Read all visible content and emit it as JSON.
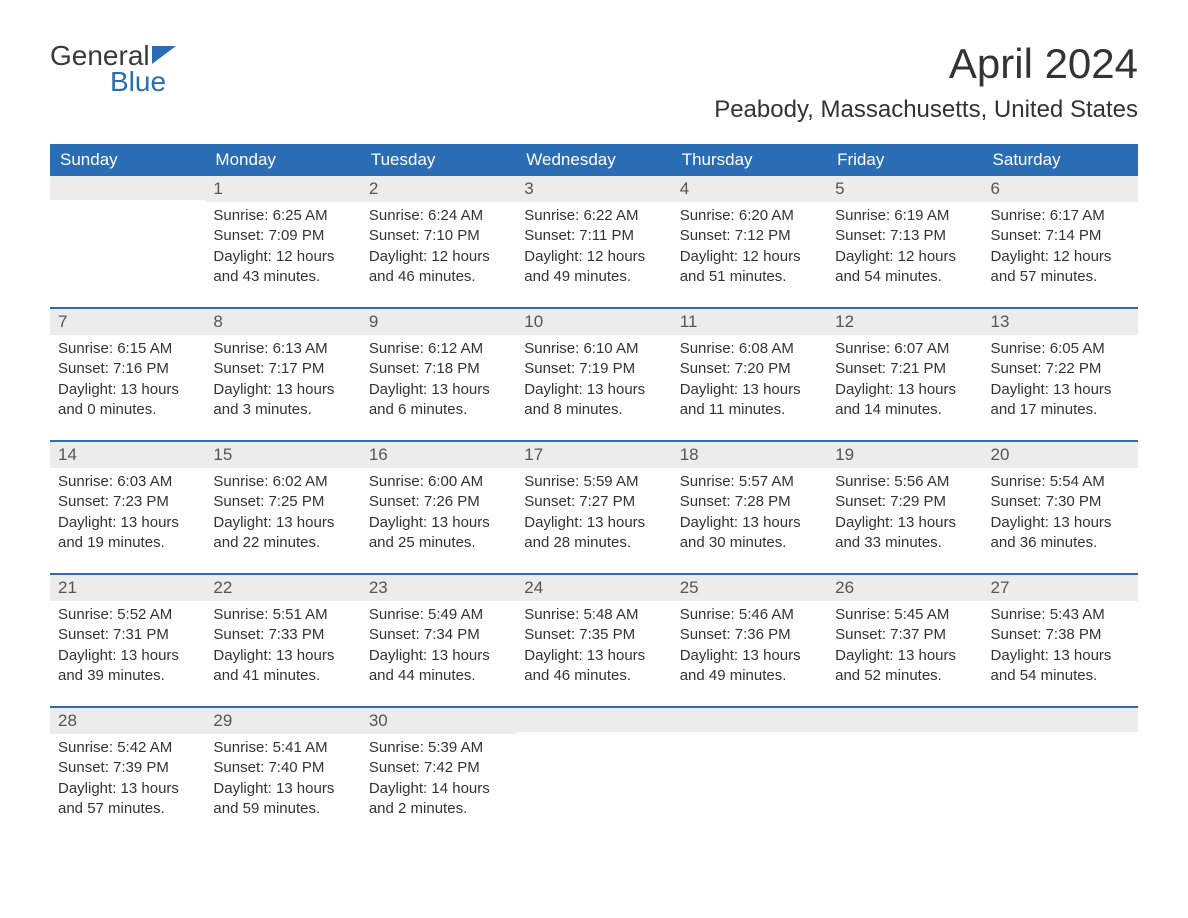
{
  "logo": {
    "word1": "General",
    "word2": "Blue"
  },
  "title": "April 2024",
  "location": "Peabody, Massachusetts, United States",
  "headers": [
    "Sunday",
    "Monday",
    "Tuesday",
    "Wednesday",
    "Thursday",
    "Friday",
    "Saturday"
  ],
  "colors": {
    "accent": "#2a6db5",
    "header_bg": "#2a6db5",
    "header_text": "#ffffff",
    "daynum_bg": "#ececec",
    "text": "#333333",
    "background": "#ffffff"
  },
  "layout": {
    "columns": 7,
    "first_weekday_offset": 1,
    "days_in_month": 30
  },
  "weeks": [
    [
      {
        "n": "",
        "sr": "",
        "ss": "",
        "dl": ""
      },
      {
        "n": "1",
        "sr": "Sunrise: 6:25 AM",
        "ss": "Sunset: 7:09 PM",
        "dl": "Daylight: 12 hours and 43 minutes."
      },
      {
        "n": "2",
        "sr": "Sunrise: 6:24 AM",
        "ss": "Sunset: 7:10 PM",
        "dl": "Daylight: 12 hours and 46 minutes."
      },
      {
        "n": "3",
        "sr": "Sunrise: 6:22 AM",
        "ss": "Sunset: 7:11 PM",
        "dl": "Daylight: 12 hours and 49 minutes."
      },
      {
        "n": "4",
        "sr": "Sunrise: 6:20 AM",
        "ss": "Sunset: 7:12 PM",
        "dl": "Daylight: 12 hours and 51 minutes."
      },
      {
        "n": "5",
        "sr": "Sunrise: 6:19 AM",
        "ss": "Sunset: 7:13 PM",
        "dl": "Daylight: 12 hours and 54 minutes."
      },
      {
        "n": "6",
        "sr": "Sunrise: 6:17 AM",
        "ss": "Sunset: 7:14 PM",
        "dl": "Daylight: 12 hours and 57 minutes."
      }
    ],
    [
      {
        "n": "7",
        "sr": "Sunrise: 6:15 AM",
        "ss": "Sunset: 7:16 PM",
        "dl": "Daylight: 13 hours and 0 minutes."
      },
      {
        "n": "8",
        "sr": "Sunrise: 6:13 AM",
        "ss": "Sunset: 7:17 PM",
        "dl": "Daylight: 13 hours and 3 minutes."
      },
      {
        "n": "9",
        "sr": "Sunrise: 6:12 AM",
        "ss": "Sunset: 7:18 PM",
        "dl": "Daylight: 13 hours and 6 minutes."
      },
      {
        "n": "10",
        "sr": "Sunrise: 6:10 AM",
        "ss": "Sunset: 7:19 PM",
        "dl": "Daylight: 13 hours and 8 minutes."
      },
      {
        "n": "11",
        "sr": "Sunrise: 6:08 AM",
        "ss": "Sunset: 7:20 PM",
        "dl": "Daylight: 13 hours and 11 minutes."
      },
      {
        "n": "12",
        "sr": "Sunrise: 6:07 AM",
        "ss": "Sunset: 7:21 PM",
        "dl": "Daylight: 13 hours and 14 minutes."
      },
      {
        "n": "13",
        "sr": "Sunrise: 6:05 AM",
        "ss": "Sunset: 7:22 PM",
        "dl": "Daylight: 13 hours and 17 minutes."
      }
    ],
    [
      {
        "n": "14",
        "sr": "Sunrise: 6:03 AM",
        "ss": "Sunset: 7:23 PM",
        "dl": "Daylight: 13 hours and 19 minutes."
      },
      {
        "n": "15",
        "sr": "Sunrise: 6:02 AM",
        "ss": "Sunset: 7:25 PM",
        "dl": "Daylight: 13 hours and 22 minutes."
      },
      {
        "n": "16",
        "sr": "Sunrise: 6:00 AM",
        "ss": "Sunset: 7:26 PM",
        "dl": "Daylight: 13 hours and 25 minutes."
      },
      {
        "n": "17",
        "sr": "Sunrise: 5:59 AM",
        "ss": "Sunset: 7:27 PM",
        "dl": "Daylight: 13 hours and 28 minutes."
      },
      {
        "n": "18",
        "sr": "Sunrise: 5:57 AM",
        "ss": "Sunset: 7:28 PM",
        "dl": "Daylight: 13 hours and 30 minutes."
      },
      {
        "n": "19",
        "sr": "Sunrise: 5:56 AM",
        "ss": "Sunset: 7:29 PM",
        "dl": "Daylight: 13 hours and 33 minutes."
      },
      {
        "n": "20",
        "sr": "Sunrise: 5:54 AM",
        "ss": "Sunset: 7:30 PM",
        "dl": "Daylight: 13 hours and 36 minutes."
      }
    ],
    [
      {
        "n": "21",
        "sr": "Sunrise: 5:52 AM",
        "ss": "Sunset: 7:31 PM",
        "dl": "Daylight: 13 hours and 39 minutes."
      },
      {
        "n": "22",
        "sr": "Sunrise: 5:51 AM",
        "ss": "Sunset: 7:33 PM",
        "dl": "Daylight: 13 hours and 41 minutes."
      },
      {
        "n": "23",
        "sr": "Sunrise: 5:49 AM",
        "ss": "Sunset: 7:34 PM",
        "dl": "Daylight: 13 hours and 44 minutes."
      },
      {
        "n": "24",
        "sr": "Sunrise: 5:48 AM",
        "ss": "Sunset: 7:35 PM",
        "dl": "Daylight: 13 hours and 46 minutes."
      },
      {
        "n": "25",
        "sr": "Sunrise: 5:46 AM",
        "ss": "Sunset: 7:36 PM",
        "dl": "Daylight: 13 hours and 49 minutes."
      },
      {
        "n": "26",
        "sr": "Sunrise: 5:45 AM",
        "ss": "Sunset: 7:37 PM",
        "dl": "Daylight: 13 hours and 52 minutes."
      },
      {
        "n": "27",
        "sr": "Sunrise: 5:43 AM",
        "ss": "Sunset: 7:38 PM",
        "dl": "Daylight: 13 hours and 54 minutes."
      }
    ],
    [
      {
        "n": "28",
        "sr": "Sunrise: 5:42 AM",
        "ss": "Sunset: 7:39 PM",
        "dl": "Daylight: 13 hours and 57 minutes."
      },
      {
        "n": "29",
        "sr": "Sunrise: 5:41 AM",
        "ss": "Sunset: 7:40 PM",
        "dl": "Daylight: 13 hours and 59 minutes."
      },
      {
        "n": "30",
        "sr": "Sunrise: 5:39 AM",
        "ss": "Sunset: 7:42 PM",
        "dl": "Daylight: 14 hours and 2 minutes."
      },
      {
        "n": "",
        "sr": "",
        "ss": "",
        "dl": ""
      },
      {
        "n": "",
        "sr": "",
        "ss": "",
        "dl": ""
      },
      {
        "n": "",
        "sr": "",
        "ss": "",
        "dl": ""
      },
      {
        "n": "",
        "sr": "",
        "ss": "",
        "dl": ""
      }
    ]
  ]
}
